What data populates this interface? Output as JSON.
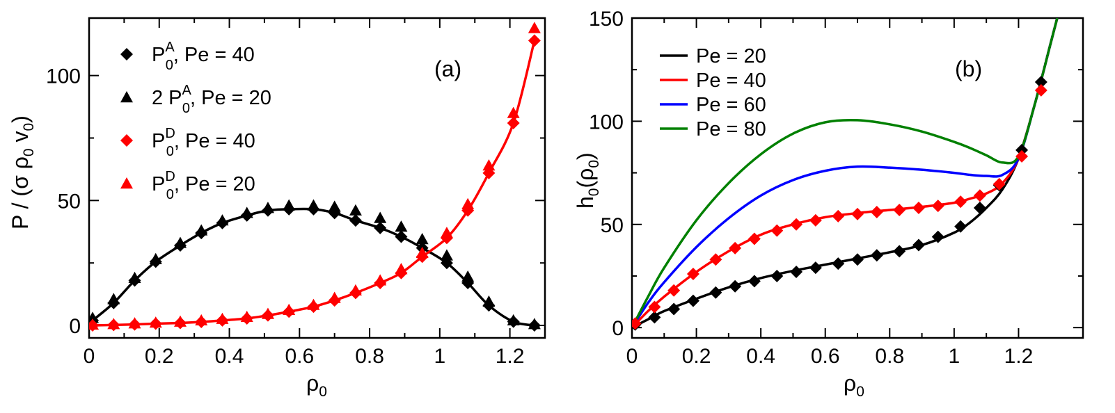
{
  "chart_data": [
    {
      "type": "line",
      "panel_label": "(a)",
      "xlabel": "ρ0",
      "ylabel": "P / (σ ρ0 v0)",
      "xlim": [
        0,
        1.3
      ],
      "ylim": [
        -5,
        123
      ],
      "x_ticks": [
        0,
        0.2,
        0.4,
        0.6,
        0.8,
        1,
        1.2
      ],
      "x_tick_labels": [
        "0",
        "0.2",
        "0.4",
        "0.6",
        "0.8",
        "1",
        "1.2"
      ],
      "y_ticks": [
        0,
        50,
        100
      ],
      "y_tick_labels": [
        "0",
        "50",
        "100"
      ],
      "legend_position": "top-left",
      "legend": [
        {
          "label": "P0A, Pe = 40",
          "marker": "diamond",
          "color": "#000000"
        },
        {
          "label": "2 P0A, Pe = 20",
          "marker": "triangle",
          "color": "#000000"
        },
        {
          "label": "P0D, Pe = 40",
          "marker": "diamond",
          "color": "#ff0000"
        },
        {
          "label": "P0D, Pe = 20",
          "marker": "triangle",
          "color": "#ff0000"
        }
      ],
      "series": [
        {
          "name": "P0A, Pe = 40",
          "color": "#000000",
          "line": true,
          "marker": "diamond",
          "x": [
            0.01,
            0.07,
            0.13,
            0.19,
            0.26,
            0.32,
            0.38,
            0.45,
            0.51,
            0.57,
            0.64,
            0.7,
            0.76,
            0.83,
            0.89,
            0.95,
            1.02,
            1.08,
            1.14,
            1.21,
            1.27
          ],
          "y": [
            2,
            9,
            18,
            25.5,
            32,
            37,
            41,
            44,
            46,
            46.5,
            46.5,
            45,
            42,
            39,
            35.5,
            31,
            25,
            17,
            8,
            1.5,
            0
          ]
        },
        {
          "name": "2 P0A, Pe = 20",
          "color": "#000000",
          "line": false,
          "marker": "triangle",
          "x": [
            0.01,
            0.07,
            0.13,
            0.19,
            0.26,
            0.32,
            0.38,
            0.45,
            0.51,
            0.57,
            0.64,
            0.7,
            0.76,
            0.83,
            0.89,
            0.95,
            1.02,
            1.08,
            1.14,
            1.21,
            1.27
          ],
          "y": [
            3,
            10.5,
            19,
            26.5,
            33,
            38,
            42,
            45,
            47,
            48,
            48,
            47.5,
            46,
            43,
            39.5,
            34.5,
            28,
            19.5,
            9.5,
            2,
            0.5
          ]
        },
        {
          "name": "P0D, Pe = 40",
          "color": "#ff0000",
          "line": true,
          "marker": "diamond",
          "x": [
            0.01,
            0.07,
            0.13,
            0.19,
            0.26,
            0.32,
            0.38,
            0.45,
            0.51,
            0.57,
            0.64,
            0.7,
            0.76,
            0.83,
            0.89,
            0.95,
            1.02,
            1.08,
            1.14,
            1.21,
            1.27
          ],
          "y": [
            0,
            0.2,
            0.4,
            0.7,
            1.0,
            1.4,
            2.0,
            2.8,
            4.0,
            5.5,
            7.5,
            10,
            13,
            17,
            21,
            27.5,
            35,
            46,
            61,
            81,
            114
          ]
        },
        {
          "name": "P0D, Pe = 20",
          "color": "#ff0000",
          "line": false,
          "marker": "triangle",
          "x": [
            0.01,
            0.07,
            0.13,
            0.19,
            0.26,
            0.32,
            0.38,
            0.45,
            0.51,
            0.57,
            0.64,
            0.7,
            0.76,
            0.83,
            0.89,
            0.95,
            1.02,
            1.08,
            1.14,
            1.21,
            1.27
          ],
          "y": [
            0.3,
            0.5,
            0.8,
            1.1,
            1.5,
            2.0,
            2.6,
            3.4,
            4.6,
            6.2,
            8.2,
            11,
            14,
            18,
            22.5,
            29,
            37,
            48.5,
            64,
            85,
            119
          ]
        }
      ]
    },
    {
      "type": "line",
      "panel_label": "(b)",
      "xlabel": "ρ0",
      "ylabel": "h0(ρ0)",
      "xlim": [
        0,
        1.4
      ],
      "ylim": [
        -5,
        150
      ],
      "x_ticks": [
        0,
        0.2,
        0.4,
        0.6,
        0.8,
        1,
        1.2
      ],
      "x_tick_labels": [
        "0",
        "0.2",
        "0.4",
        "0.6",
        "0.8",
        "1",
        "1.2"
      ],
      "y_ticks": [
        0,
        50,
        100,
        150
      ],
      "y_tick_labels": [
        "0",
        "50",
        "100",
        "150"
      ],
      "legend_position": "top-left",
      "legend": [
        {
          "label": "Pe = 20",
          "color": "#000000"
        },
        {
          "label": "Pe = 40",
          "color": "#ff0000"
        },
        {
          "label": "Pe = 60",
          "color": "#0000ff"
        },
        {
          "label": "Pe = 80",
          "color": "#008000"
        }
      ],
      "series": [
        {
          "name": "Pe = 20",
          "color": "#000000",
          "line": true,
          "marker": "diamond",
          "curve_x": [
            0,
            0.05,
            0.1,
            0.2,
            0.3,
            0.4,
            0.5,
            0.6,
            0.7,
            0.8,
            0.9,
            1.0,
            1.05,
            1.1,
            1.15,
            1.2,
            1.25,
            1.3,
            1.32
          ],
          "curve_y": [
            0,
            4,
            8,
            14,
            19.5,
            24,
            27.5,
            30.5,
            33.5,
            36.5,
            40,
            46,
            51,
            58,
            67,
            82,
            108,
            138,
            150
          ],
          "x": [
            0.01,
            0.07,
            0.13,
            0.19,
            0.26,
            0.32,
            0.38,
            0.45,
            0.51,
            0.57,
            0.64,
            0.7,
            0.76,
            0.83,
            0.89,
            0.95,
            1.02,
            1.08,
            1.14,
            1.21,
            1.27
          ],
          "y": [
            1.5,
            5,
            9,
            13,
            17,
            20,
            22.5,
            25,
            27,
            29,
            31,
            33,
            35,
            37,
            40,
            44,
            49,
            58,
            69,
            86,
            119
          ]
        },
        {
          "name": "Pe = 40",
          "color": "#ff0000",
          "line": true,
          "marker": "diamond",
          "curve_x": [
            0,
            0.05,
            0.1,
            0.2,
            0.3,
            0.4,
            0.5,
            0.6,
            0.7,
            0.8,
            0.9,
            1.0,
            1.05,
            1.1,
            1.15,
            1.2,
            1.25,
            1.3,
            1.32
          ],
          "curve_y": [
            0,
            8,
            15,
            27,
            37,
            45,
            50,
            53.5,
            55.5,
            57,
            58.5,
            60.5,
            62.5,
            65,
            70,
            82,
            108,
            138,
            150
          ],
          "x": [
            0.01,
            0.07,
            0.13,
            0.19,
            0.26,
            0.32,
            0.38,
            0.45,
            0.51,
            0.57,
            0.64,
            0.7,
            0.76,
            0.83,
            0.89,
            0.95,
            1.02,
            1.08,
            1.14,
            1.21,
            1.27
          ],
          "y": [
            2,
            10,
            18,
            26,
            33,
            38.5,
            43,
            47,
            50,
            52,
            54,
            55,
            56,
            57,
            58,
            59,
            61,
            64,
            69.5,
            83,
            115
          ]
        },
        {
          "name": "Pe = 60",
          "color": "#0000ff",
          "line": true,
          "marker": "none",
          "curve_x": [
            0,
            0.05,
            0.1,
            0.2,
            0.3,
            0.4,
            0.5,
            0.6,
            0.7,
            0.8,
            0.9,
            1.0,
            1.05,
            1.1,
            1.15,
            1.2,
            1.25,
            1.3,
            1.32
          ],
          "curve_y": [
            0,
            12,
            22,
            39,
            53,
            64,
            71.5,
            76,
            78,
            77.5,
            76.5,
            75,
            74,
            73.5,
            74,
            82,
            108,
            138,
            150
          ]
        },
        {
          "name": "Pe = 80",
          "color": "#008000",
          "line": true,
          "marker": "none",
          "curve_x": [
            0,
            0.05,
            0.1,
            0.2,
            0.3,
            0.4,
            0.5,
            0.6,
            0.7,
            0.8,
            0.9,
            1.0,
            1.05,
            1.1,
            1.15,
            1.2,
            1.25,
            1.3,
            1.32
          ],
          "curve_y": [
            0,
            15,
            29,
            52,
            70,
            84,
            94,
            99.5,
            100.5,
            98.5,
            95,
            90,
            87,
            83.5,
            80,
            83,
            108,
            138,
            150
          ]
        }
      ]
    }
  ]
}
